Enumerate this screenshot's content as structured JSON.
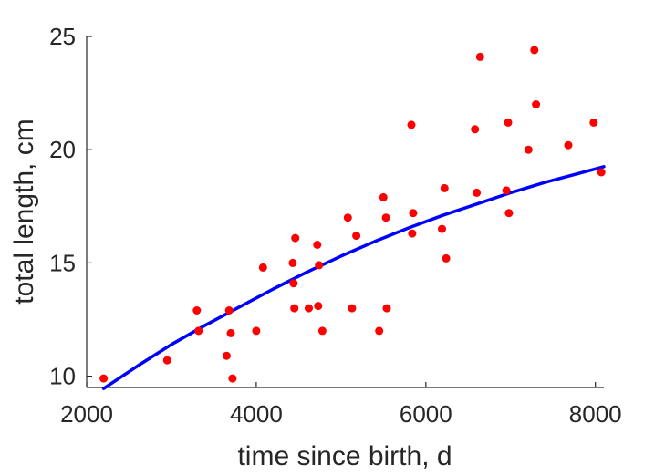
{
  "chart_data": {
    "type": "scatter",
    "title": "",
    "xlabel": "time since birth, d",
    "ylabel": "total length, cm",
    "xlim": [
      2000,
      8100
    ],
    "ylim": [
      9.5,
      25.0
    ],
    "x_ticks": [
      "2000",
      "4000",
      "6000",
      "8000"
    ],
    "x_tick_values": [
      2000,
      4000,
      6000,
      8000
    ],
    "y_ticks": [
      "10",
      "15",
      "20",
      "25"
    ],
    "y_tick_values": [
      10,
      15,
      20,
      25
    ],
    "grid": false,
    "series": [
      {
        "kind": "points",
        "color": "#ff0000",
        "points": [
          [
            2200,
            9.9
          ],
          [
            2950,
            10.7
          ],
          [
            3300,
            12.9
          ],
          [
            3320,
            12.0
          ],
          [
            3650,
            10.9
          ],
          [
            3680,
            12.9
          ],
          [
            3700,
            11.9
          ],
          [
            3720,
            9.9
          ],
          [
            4000,
            12.0
          ],
          [
            4080,
            14.8
          ],
          [
            4430,
            15.0
          ],
          [
            4440,
            14.1
          ],
          [
            4450,
            13.0
          ],
          [
            4460,
            16.1
          ],
          [
            4620,
            13.0
          ],
          [
            4720,
            15.8
          ],
          [
            4730,
            13.1
          ],
          [
            4740,
            14.9
          ],
          [
            4780,
            12.0
          ],
          [
            5080,
            17.0
          ],
          [
            5130,
            13.0
          ],
          [
            5180,
            16.2
          ],
          [
            5450,
            12.0
          ],
          [
            5500,
            17.9
          ],
          [
            5530,
            17.0
          ],
          [
            5540,
            13.0
          ],
          [
            5830,
            21.1
          ],
          [
            5840,
            16.3
          ],
          [
            5850,
            17.2
          ],
          [
            6190,
            16.5
          ],
          [
            6220,
            18.3
          ],
          [
            6240,
            15.2
          ],
          [
            6580,
            20.9
          ],
          [
            6600,
            18.1
          ],
          [
            6640,
            24.1
          ],
          [
            6950,
            18.2
          ],
          [
            6970,
            21.2
          ],
          [
            6980,
            17.2
          ],
          [
            7210,
            20.0
          ],
          [
            7280,
            24.4
          ],
          [
            7300,
            22.0
          ],
          [
            7680,
            20.2
          ],
          [
            7980,
            21.2
          ],
          [
            8070,
            19.0
          ]
        ]
      },
      {
        "kind": "fit-curve",
        "color": "#0000ff",
        "points": [
          [
            2200,
            9.45
          ],
          [
            2600,
            10.45
          ],
          [
            3000,
            11.4
          ],
          [
            3400,
            12.25
          ],
          [
            3800,
            13.05
          ],
          [
            4200,
            13.85
          ],
          [
            4600,
            14.6
          ],
          [
            5000,
            15.3
          ],
          [
            5400,
            15.95
          ],
          [
            5800,
            16.55
          ],
          [
            6200,
            17.1
          ],
          [
            6600,
            17.6
          ],
          [
            7000,
            18.1
          ],
          [
            7400,
            18.55
          ],
          [
            7800,
            18.95
          ],
          [
            8100,
            19.25
          ]
        ]
      }
    ]
  }
}
